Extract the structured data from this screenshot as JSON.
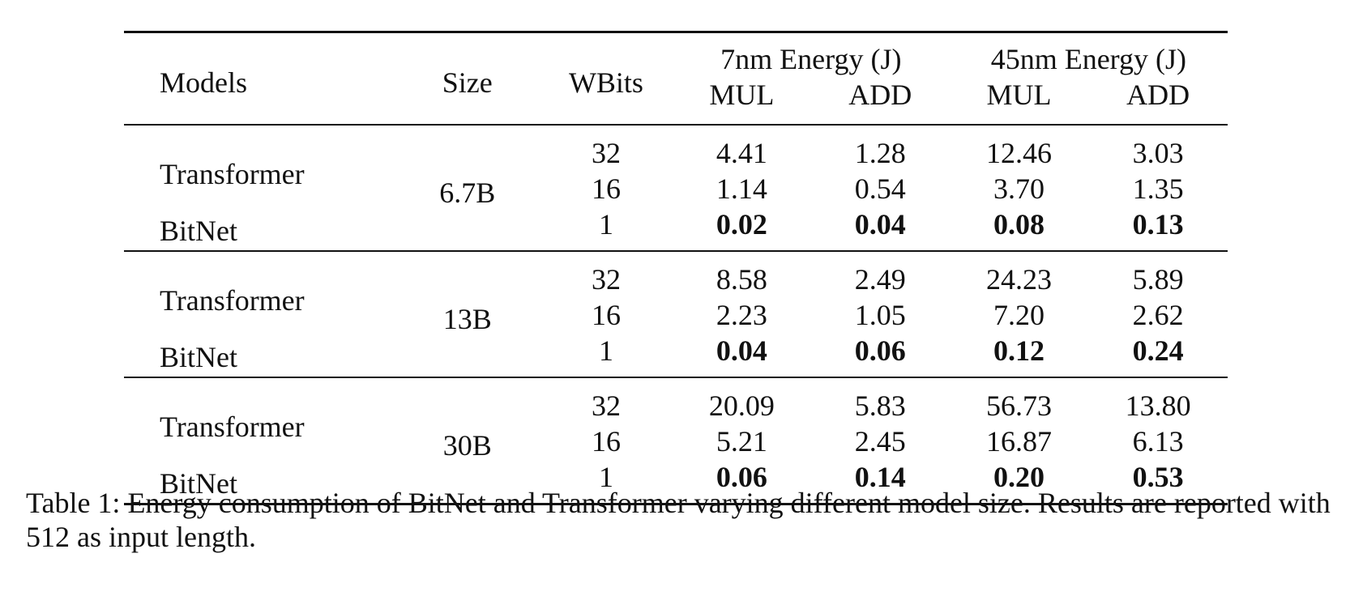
{
  "table": {
    "header": {
      "models": "Models",
      "size": "Size",
      "wbits": "WBits",
      "group_7nm": "7nm Energy (J)",
      "group_45nm": "45nm Energy (J)",
      "mul_7": "MUL",
      "add_7": "ADD",
      "mul_45": "MUL",
      "add_45": "ADD"
    },
    "groups": [
      {
        "size": "6.7B",
        "model_top": "Transformer",
        "model_bottom": "BitNet",
        "rows": [
          {
            "wbits": "32",
            "mul7": "4.41",
            "add7": "1.28",
            "mul45": "12.46",
            "add45": "3.03"
          },
          {
            "wbits": "16",
            "mul7": "1.14",
            "add7": "0.54",
            "mul45": "3.70",
            "add45": "1.35"
          },
          {
            "wbits": "1",
            "mul7": "0.02",
            "add7": "0.04",
            "mul45": "0.08",
            "add45": "0.13"
          }
        ]
      },
      {
        "size": "13B",
        "model_top": "Transformer",
        "model_bottom": "BitNet",
        "rows": [
          {
            "wbits": "32",
            "mul7": "8.58",
            "add7": "2.49",
            "mul45": "24.23",
            "add45": "5.89"
          },
          {
            "wbits": "16",
            "mul7": "2.23",
            "add7": "1.05",
            "mul45": "7.20",
            "add45": "2.62"
          },
          {
            "wbits": "1",
            "mul7": "0.04",
            "add7": "0.06",
            "mul45": "0.12",
            "add45": "0.24"
          }
        ]
      },
      {
        "size": "30B",
        "model_top": "Transformer",
        "model_bottom": "BitNet",
        "rows": [
          {
            "wbits": "32",
            "mul7": "20.09",
            "add7": "5.83",
            "mul45": "56.73",
            "add45": "13.80"
          },
          {
            "wbits": "16",
            "mul7": "5.21",
            "add7": "2.45",
            "mul45": "16.87",
            "add45": "6.13"
          },
          {
            "wbits": "1",
            "mul7": "0.06",
            "add7": "0.14",
            "mul45": "0.20",
            "add45": "0.53"
          }
        ]
      }
    ]
  },
  "caption": "Table 1: Energy consumption of BitNet and Transformer varying different model size. Results are reported with 512 as input length."
}
